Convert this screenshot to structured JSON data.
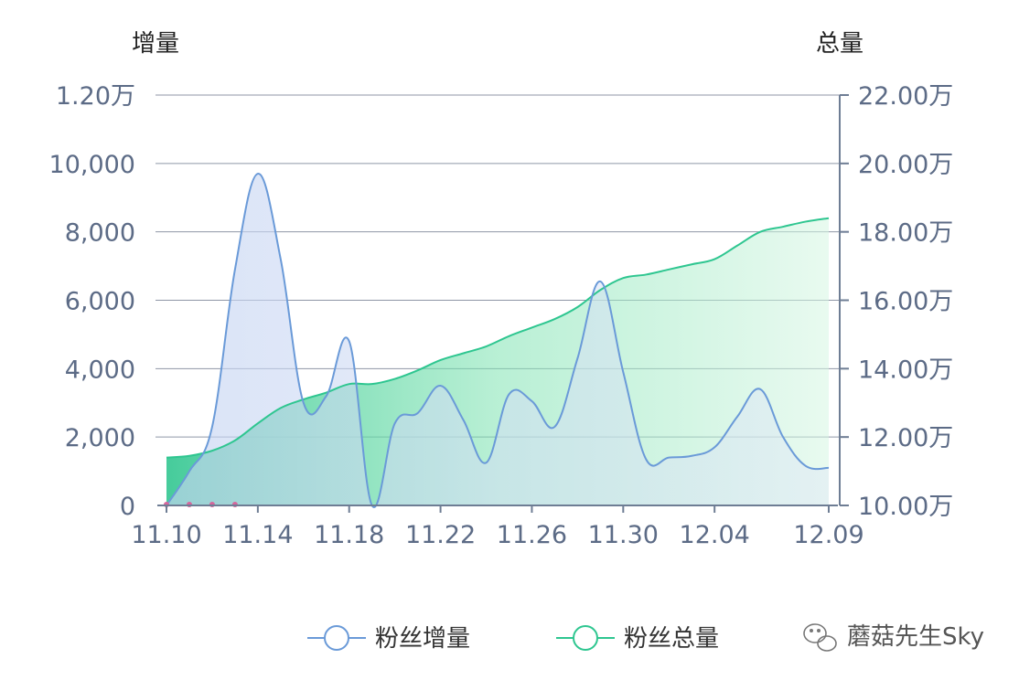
{
  "chart_data": {
    "type": "line",
    "x": [
      "11.10",
      "11.11",
      "11.12",
      "11.13",
      "11.14",
      "11.15",
      "11.16",
      "11.17",
      "11.18",
      "11.19",
      "11.20",
      "11.21",
      "11.22",
      "11.23",
      "11.24",
      "11.25",
      "11.26",
      "11.27",
      "11.28",
      "11.29",
      "11.30",
      "12.01",
      "12.02",
      "12.03",
      "12.04",
      "12.05",
      "12.06",
      "12.07",
      "12.08",
      "12.09"
    ],
    "x_tick_labels": [
      "11.10",
      "11.14",
      "11.18",
      "11.22",
      "11.26",
      "11.30",
      "12.04",
      "12.09"
    ],
    "y_left_title": "增量",
    "y_right_title": "总量",
    "y_left_ticks": [
      "0",
      "2,000",
      "4,000",
      "6,000",
      "8,000",
      "10,000",
      "1.20万"
    ],
    "y_right_ticks": [
      "10.00万",
      "12.00万",
      "14.00万",
      "16.00万",
      "18.00万",
      "20.00万",
      "22.00万"
    ],
    "y_left_lim": [
      0,
      12000
    ],
    "y_right_lim": [
      100000,
      220000
    ],
    "series": [
      {
        "name": "粉丝增量",
        "axis": "left",
        "color": "#6a9ad8",
        "values": [
          0,
          1000,
          2300,
          6900,
          9700,
          7200,
          3000,
          3200,
          4800,
          0,
          2400,
          2700,
          3500,
          2500,
          1250,
          3250,
          3050,
          2300,
          4300,
          6550,
          3900,
          1350,
          1400,
          1450,
          1700,
          2600,
          3400,
          2000,
          1150,
          1100
        ]
      },
      {
        "name": "粉丝总量",
        "axis": "right",
        "color": "#2ec690",
        "values": [
          114000,
          114500,
          116000,
          119000,
          124000,
          128500,
          131000,
          133000,
          135500,
          135500,
          137000,
          139500,
          142500,
          144500,
          146500,
          149500,
          152000,
          154500,
          158000,
          163000,
          166500,
          167500,
          169000,
          170500,
          172000,
          176000,
          180000,
          181500,
          183000,
          184000
        ]
      }
    ],
    "legend_position": "bottom",
    "grid": true
  },
  "legend": {
    "items": [
      {
        "label": "粉丝增量",
        "color": "#6a9ad8"
      },
      {
        "label": "粉丝总量",
        "color": "#2ec690"
      }
    ]
  },
  "watermark": {
    "text": "蘑菇先生Sky",
    "icon": "wechat-icon"
  }
}
